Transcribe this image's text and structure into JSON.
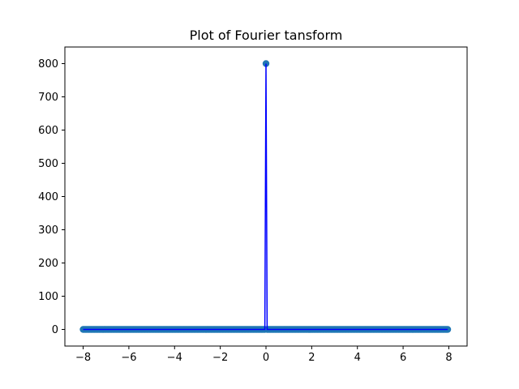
{
  "chart_data": {
    "type": "scatter",
    "title": "Plot of Fourier tansform",
    "xlabel": "",
    "ylabel": "",
    "xlim": [
      -8.8,
      8.8
    ],
    "ylim": [
      -50,
      850
    ],
    "xticks": [
      -8,
      -6,
      -4,
      -2,
      0,
      2,
      4,
      6,
      8
    ],
    "xtick_labels": [
      "−8",
      "−6",
      "−4",
      "−2",
      "0",
      "2",
      "4",
      "6",
      "8"
    ],
    "yticks": [
      0,
      100,
      200,
      300,
      400,
      500,
      600,
      700,
      800
    ],
    "ytick_labels": [
      "0",
      "100",
      "200",
      "300",
      "400",
      "500",
      "600",
      "700",
      "800"
    ],
    "grid": false,
    "x_range": [
      -8,
      7.95
    ],
    "n_points": 320,
    "peak": {
      "x": 0,
      "y": 800
    },
    "baseline_value": 0,
    "marker_color": "#1f77b4",
    "line_color": "#0000ff"
  }
}
